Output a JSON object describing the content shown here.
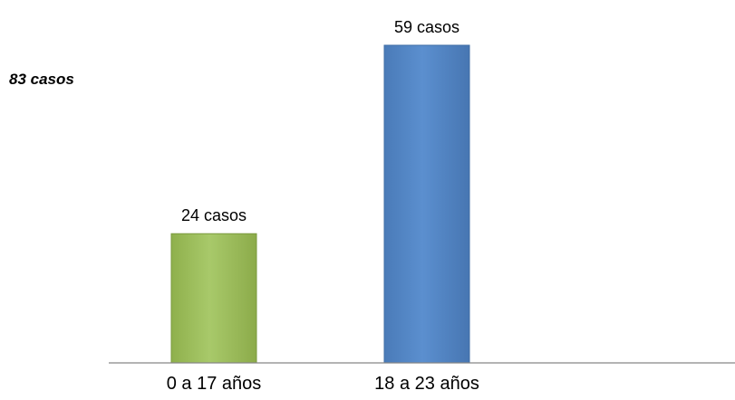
{
  "chart_data": {
    "type": "bar",
    "title": "",
    "total_annotation": "83 casos",
    "categories": [
      "0 a 17 años",
      "18 a 23 años"
    ],
    "values": [
      24,
      59
    ],
    "data_labels": [
      "24 casos",
      "59 casos"
    ],
    "bar_colors": [
      "#9bbb59",
      "#4f81bd"
    ],
    "xlabel": "",
    "ylabel": "",
    "ylim": [
      0,
      59
    ],
    "grid": false,
    "legend": "none"
  }
}
